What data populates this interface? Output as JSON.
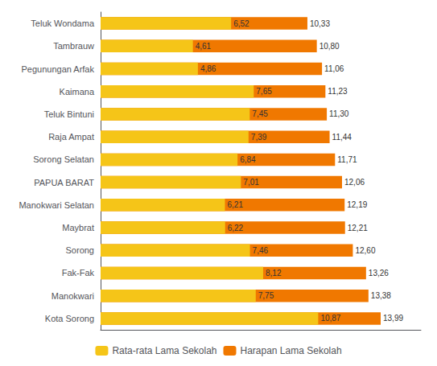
{
  "chart_data": {
    "type": "bar",
    "orientation": "horizontal",
    "categories": [
      "Teluk Wondama",
      "Tambrauw",
      "Pegunungan Arfak",
      "Kaimana",
      "Teluk Bintuni",
      "Raja Ampat",
      "Sorong Selatan",
      "PAPUA BARAT",
      "Manokwari Selatan",
      "Maybrat",
      "Sorong",
      "Fak-Fak",
      "Manokwari",
      "Kota Sorong"
    ],
    "series": [
      {
        "name": "Rata-rata Lama Sekolah",
        "color": "#F5C518",
        "values": [
          6.52,
          4.61,
          4.86,
          7.65,
          7.45,
          7.39,
          6.84,
          7.01,
          6.21,
          6.22,
          7.46,
          8.12,
          7.75,
          10.87
        ],
        "value_labels": [
          "6,52",
          "4,61",
          "4,86",
          "7,65",
          "7,45",
          "7,39",
          "6,84",
          "7,01",
          "6,21",
          "6,22",
          "7,46",
          "8,12",
          "7,75",
          "10,87"
        ]
      },
      {
        "name": "Harapan Lama Sekolah",
        "color": "#F07800",
        "values": [
          10.33,
          10.8,
          11.06,
          11.23,
          11.3,
          11.44,
          11.71,
          12.06,
          12.19,
          12.21,
          12.6,
          13.26,
          13.38,
          13.99
        ],
        "value_labels": [
          "10,33",
          "10,80",
          "11,06",
          "11,23",
          "11,30",
          "11,44",
          "11,71",
          "12,06",
          "12,19",
          "12,21",
          "12,60",
          "13,26",
          "13,38",
          "13,99"
        ]
      }
    ],
    "xlim": [
      0,
      16.0
    ],
    "data_labels": true,
    "tick_labels": "y",
    "grid": false,
    "legend": "bottom"
  }
}
